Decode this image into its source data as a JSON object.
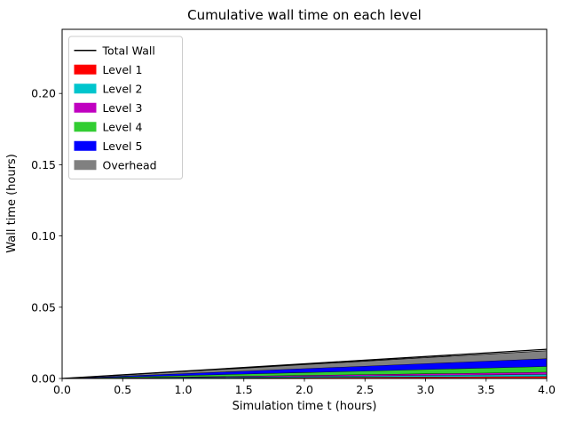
{
  "figure": {
    "background": "#ffffff",
    "text_color": "#000000",
    "spine_color": "#000000"
  },
  "chart_data": {
    "type": "area",
    "stacked": true,
    "title": "Cumulative wall time on each level",
    "xlabel": "Simulation time t (hours)",
    "ylabel": "Wall time (hours)",
    "xlim": [
      0.0,
      4.0
    ],
    "ylim": [
      0.0,
      0.245
    ],
    "xticks": [
      0.0,
      0.5,
      1.0,
      1.5,
      2.0,
      2.5,
      3.0,
      3.5,
      4.0
    ],
    "xtick_labels": [
      "0.0",
      "0.5",
      "1.0",
      "1.5",
      "2.0",
      "2.5",
      "3.0",
      "3.5",
      "4.0"
    ],
    "yticks": [
      0.0,
      0.05,
      0.1,
      0.15,
      0.2
    ],
    "ytick_labels": [
      "0.00",
      "0.05",
      "0.10",
      "0.15",
      "0.20"
    ],
    "grid": false,
    "legend": {
      "position": "upper left",
      "background": "#ffffff",
      "border_color": "#cccccc"
    },
    "x": [
      0.0,
      0.5,
      1.0,
      1.5,
      2.0,
      2.5,
      3.0,
      3.5,
      4.0
    ],
    "series": [
      {
        "name": "Level 1",
        "color": "#ff0000",
        "values": [
          0.0,
          0.00019,
          0.00038,
          0.00056,
          0.00075,
          0.00094,
          0.00113,
          0.00131,
          0.0015
        ]
      },
      {
        "name": "Level 2",
        "color": "#00c5cd",
        "values": [
          0.0,
          0.00019,
          0.00038,
          0.00056,
          0.00075,
          0.00094,
          0.00113,
          0.00131,
          0.0015
        ]
      },
      {
        "name": "Level 3",
        "color": "#c000c0",
        "values": [
          0.0,
          0.00019,
          0.00038,
          0.00056,
          0.00075,
          0.00094,
          0.00113,
          0.00131,
          0.0015
        ]
      },
      {
        "name": "Level 4",
        "color": "#32cd32",
        "values": [
          0.0,
          0.0005,
          0.001,
          0.0015,
          0.002,
          0.0025,
          0.003,
          0.0035,
          0.004
        ]
      },
      {
        "name": "Level 5",
        "color": "#0000ff",
        "values": [
          0.0,
          0.00069,
          0.00138,
          0.00206,
          0.00275,
          0.00344,
          0.00413,
          0.00481,
          0.0055
        ]
      },
      {
        "name": "Overhead",
        "color": "#808080",
        "values": [
          0.0,
          0.00069,
          0.00138,
          0.00206,
          0.00275,
          0.00344,
          0.00413,
          0.00481,
          0.0055
        ]
      }
    ],
    "line_series": [
      {
        "name": "Total Wall",
        "color": "#000000",
        "values": [
          0.0,
          0.00256,
          0.00513,
          0.00769,
          0.01025,
          0.01281,
          0.01538,
          0.01794,
          0.0205
        ]
      }
    ]
  }
}
